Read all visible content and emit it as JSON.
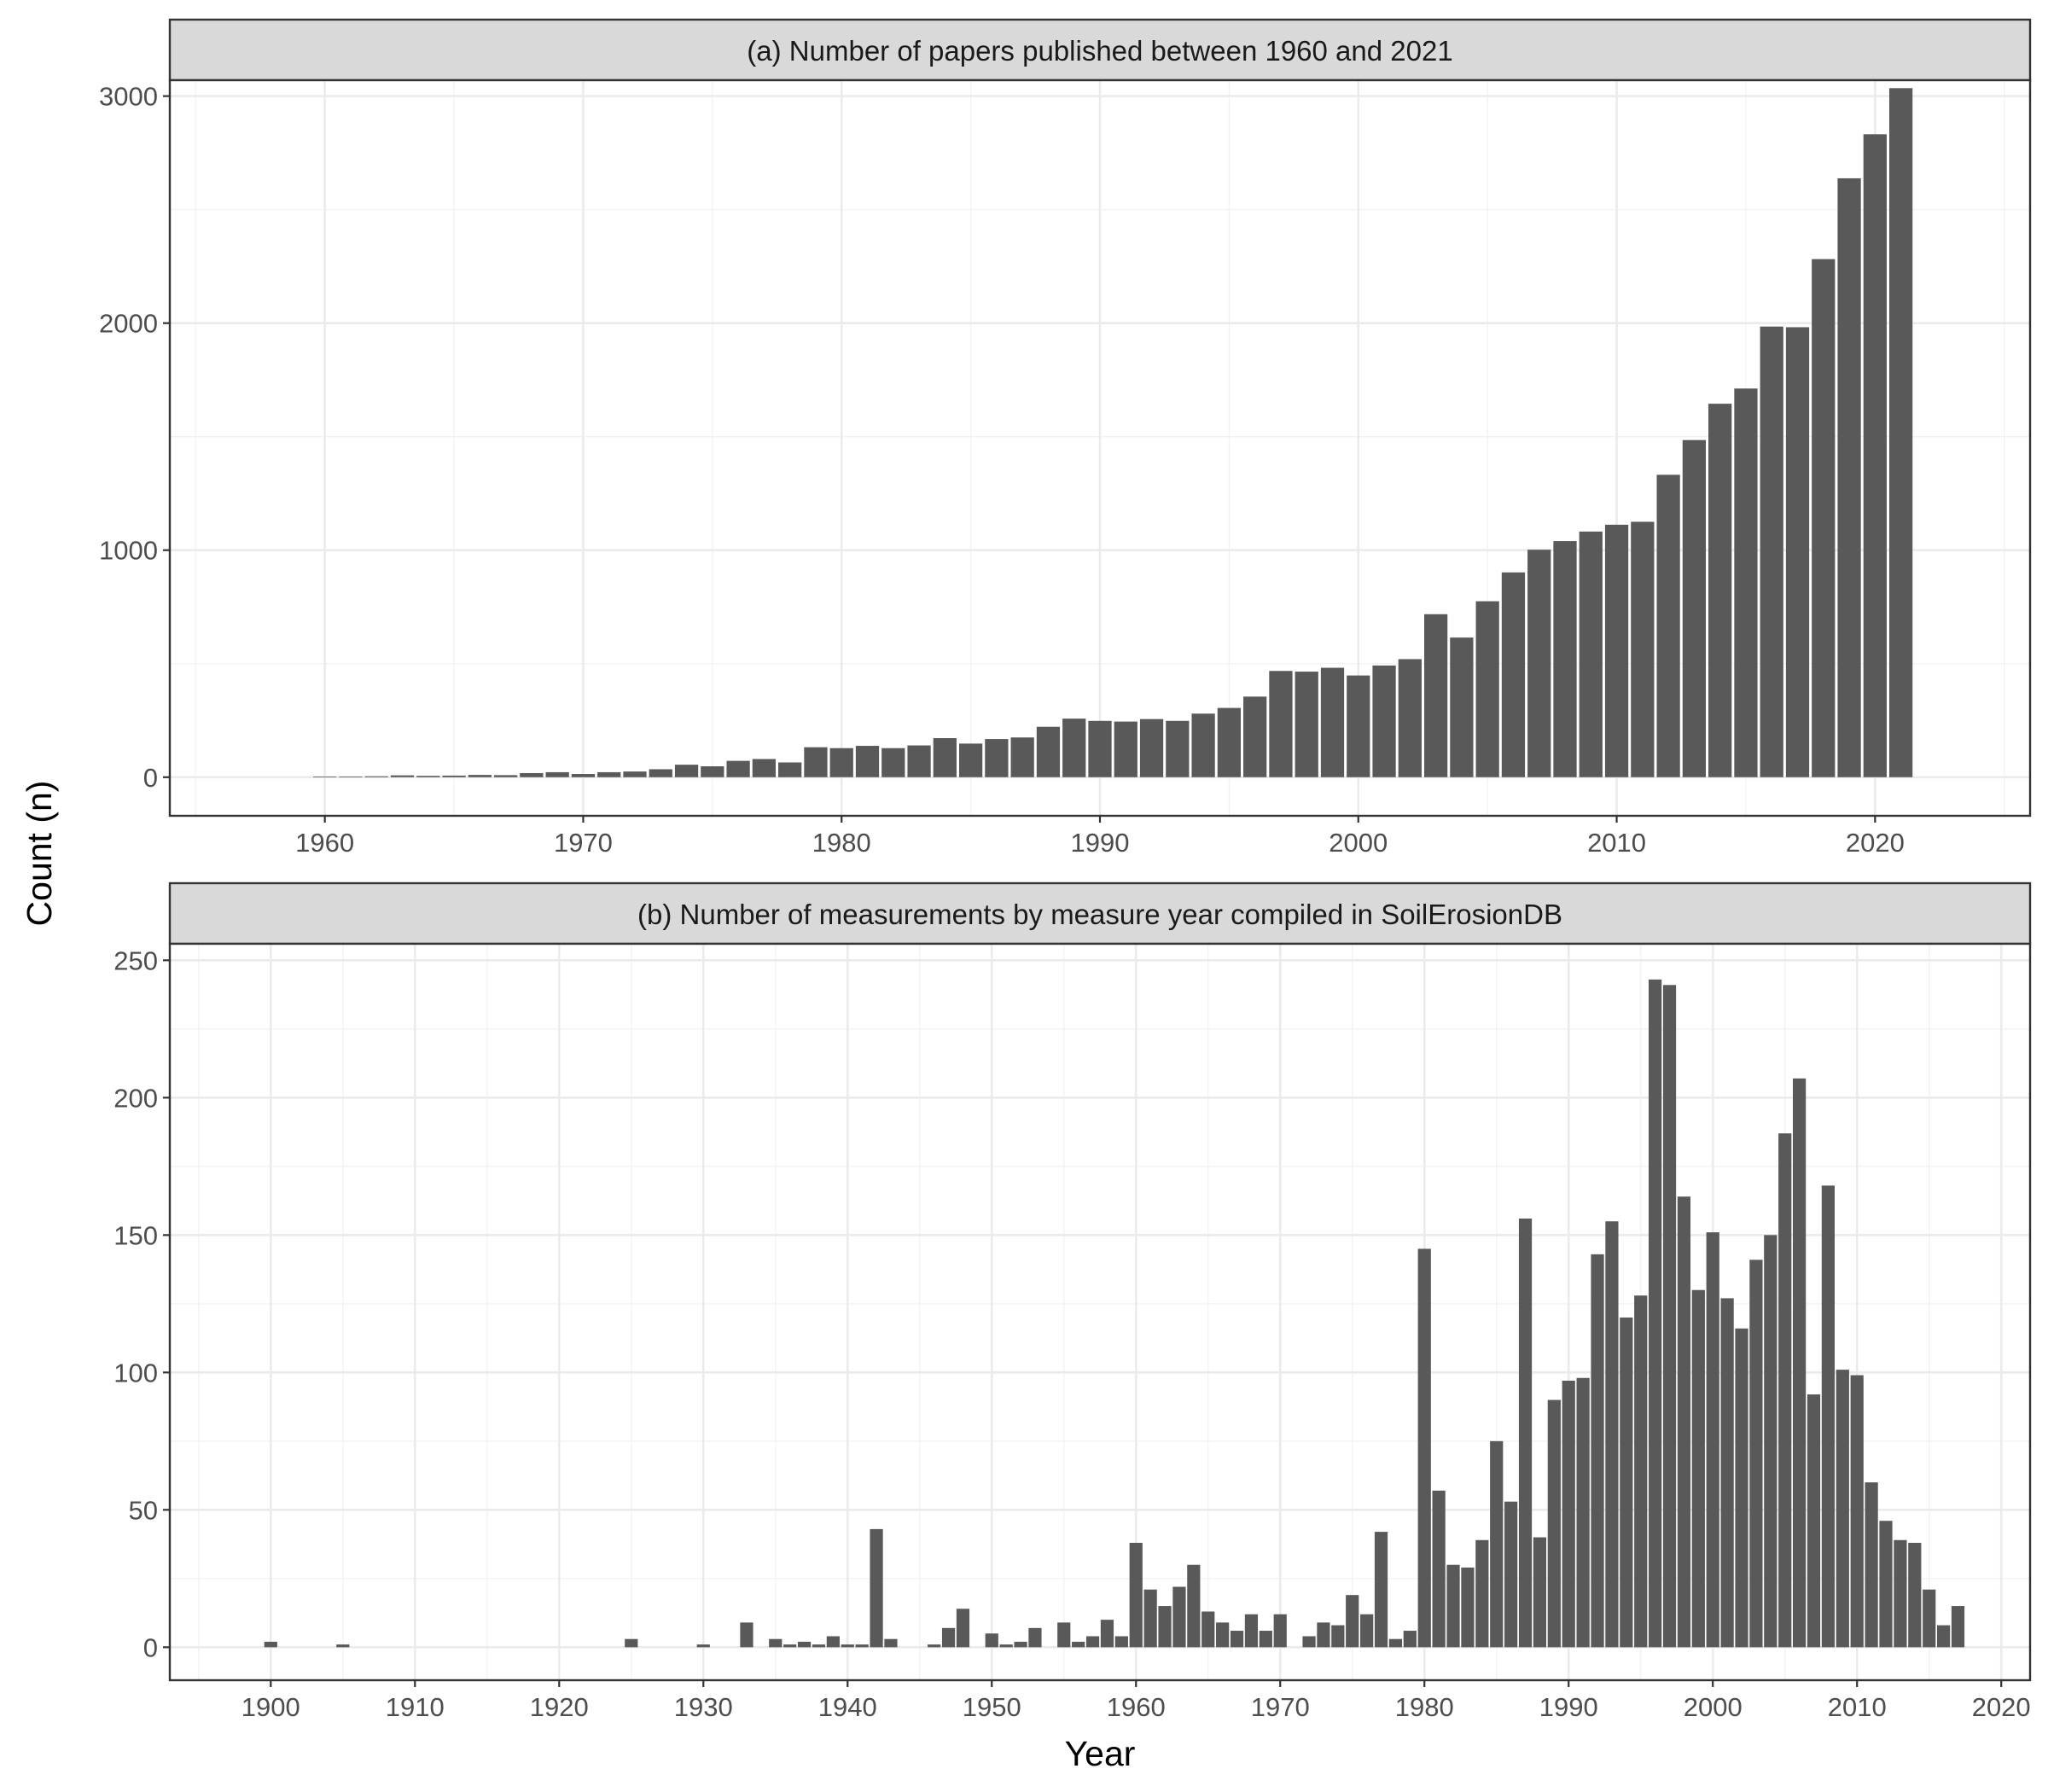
{
  "ylabel": "Count (n)",
  "xlabel": "Year",
  "colors": {
    "bar": "#595959",
    "strip": "#d9d9d9",
    "grid": "#ebebeb",
    "border": "#333333"
  },
  "chart_data": [
    {
      "type": "bar",
      "title": "(a) Number of papers published between 1960 and 2021",
      "xlim": [
        1954,
        2026
      ],
      "ylim": [
        -170,
        3070
      ],
      "xticks": [
        1960,
        1970,
        1980,
        1990,
        2000,
        2010,
        2020
      ],
      "yticks": [
        0,
        1000,
        2000,
        3000
      ],
      "grid": true,
      "x": [
        1960,
        1961,
        1962,
        1963,
        1964,
        1965,
        1966,
        1967,
        1968,
        1969,
        1970,
        1971,
        1972,
        1973,
        1974,
        1975,
        1976,
        1977,
        1978,
        1979,
        1980,
        1981,
        1982,
        1983,
        1984,
        1985,
        1986,
        1987,
        1988,
        1989,
        1990,
        1991,
        1992,
        1993,
        1994,
        1995,
        1996,
        1997,
        1998,
        1999,
        2000,
        2001,
        2002,
        2003,
        2004,
        2005,
        2006,
        2007,
        2008,
        2009,
        2010,
        2011,
        2012,
        2013,
        2014,
        2015,
        2016,
        2017,
        2018,
        2019,
        2020,
        2021
      ],
      "values": [
        3,
        3,
        4,
        8,
        6,
        7,
        10,
        9,
        18,
        22,
        14,
        22,
        25,
        35,
        55,
        48,
        72,
        80,
        65,
        132,
        128,
        138,
        128,
        140,
        172,
        148,
        168,
        175,
        222,
        258,
        248,
        245,
        256,
        248,
        280,
        305,
        355,
        468,
        465,
        482,
        448,
        492,
        520,
        718,
        615,
        775,
        902,
        1002,
        1040,
        1082,
        1112,
        1125,
        1332,
        1485,
        1645,
        1712,
        1985,
        1982,
        2282,
        2638,
        2832,
        3035
      ]
    },
    {
      "type": "bar",
      "title": "(b) Number of measurements by measure year compiled in SoilErosionDB",
      "xlim": [
        1893,
        2022
      ],
      "ylim": [
        -12,
        256
      ],
      "xticks": [
        1900,
        1910,
        1920,
        1930,
        1940,
        1950,
        1960,
        1970,
        1980,
        1990,
        2000,
        2010,
        2020
      ],
      "yticks": [
        0,
        50,
        100,
        150,
        200,
        250
      ],
      "grid": true,
      "x": [
        1900,
        1905,
        1925,
        1930,
        1933,
        1935,
        1936,
        1937,
        1938,
        1939,
        1940,
        1941,
        1942,
        1943,
        1946,
        1947,
        1948,
        1950,
        1951,
        1952,
        1953,
        1955,
        1956,
        1957,
        1958,
        1959,
        1960,
        1961,
        1962,
        1963,
        1964,
        1965,
        1966,
        1967,
        1968,
        1969,
        1970,
        1972,
        1973,
        1974,
        1975,
        1976,
        1977,
        1978,
        1979,
        1980,
        1981,
        1982,
        1983,
        1984,
        1985,
        1986,
        1987,
        1988,
        1989,
        1990,
        1991,
        1992,
        1993,
        1994,
        1995,
        1996,
        1997,
        1998,
        1999,
        2000,
        2001,
        2002,
        2003,
        2004,
        2005,
        2006,
        2007,
        2008,
        2009,
        2010,
        2011,
        2012,
        2013,
        2014,
        2015,
        2016,
        2017
      ],
      "values": [
        2,
        1,
        3,
        1,
        9,
        3,
        1,
        2,
        1,
        4,
        1,
        1,
        43,
        3,
        1,
        7,
        14,
        5,
        1,
        2,
        7,
        9,
        2,
        4,
        10,
        4,
        38,
        21,
        15,
        22,
        30,
        13,
        9,
        6,
        12,
        6,
        12,
        4,
        9,
        8,
        19,
        12,
        42,
        3,
        6,
        145,
        57,
        30,
        29,
        39,
        75,
        53,
        156,
        40,
        90,
        97,
        98,
        143,
        155,
        120,
        128,
        243,
        241,
        164,
        130,
        151,
        127,
        116,
        141,
        150,
        187,
        207,
        92,
        168,
        101,
        99,
        60,
        46,
        39,
        38,
        21,
        8,
        15
      ]
    }
  ]
}
